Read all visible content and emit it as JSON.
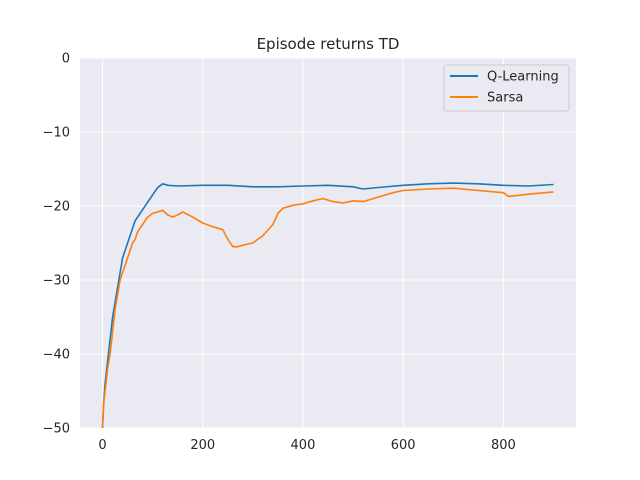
{
  "chart_data": {
    "type": "line",
    "title": "Episode returns TD",
    "xlabel": "",
    "ylabel": "",
    "xlim": [
      -45,
      945
    ],
    "ylim": [
      -50,
      0
    ],
    "xticks": [
      0,
      200,
      400,
      600,
      800
    ],
    "yticks": [
      0,
      -10,
      -20,
      -30,
      -40,
      -50
    ],
    "x_tick_labels": [
      "0",
      "200",
      "400",
      "600",
      "800"
    ],
    "y_tick_labels": [
      "0",
      "−10",
      "−20",
      "−30",
      "−40",
      "−50"
    ],
    "grid": true,
    "legend_position": "top-right",
    "series": [
      {
        "name": "Q-Learning",
        "color": "#1f77b4",
        "x": [
          0,
          2,
          5,
          10,
          15,
          20,
          25,
          30,
          35,
          40,
          45,
          50,
          55,
          60,
          65,
          70,
          75,
          80,
          90,
          100,
          110,
          120,
          130,
          150,
          200,
          250,
          300,
          350,
          400,
          450,
          500,
          520,
          550,
          600,
          650,
          700,
          750,
          800,
          850,
          900
        ],
        "y": [
          -50,
          -47,
          -44,
          -41,
          -38,
          -35,
          -33,
          -31,
          -29,
          -27,
          -26,
          -25,
          -24,
          -23,
          -22,
          -21.5,
          -21,
          -20.5,
          -19.5,
          -18.5,
          -17.5,
          -17.0,
          -17.2,
          -17.3,
          -17.2,
          -17.2,
          -17.4,
          -17.4,
          -17.3,
          -17.2,
          -17.4,
          -17.7,
          -17.5,
          -17.2,
          -17.0,
          -16.9,
          -17.0,
          -17.2,
          -17.3,
          -17.1
        ]
      },
      {
        "name": "Sarsa",
        "color": "#ff7f0e",
        "x": [
          0,
          2,
          5,
          10,
          15,
          20,
          25,
          30,
          35,
          40,
          45,
          50,
          55,
          60,
          65,
          70,
          80,
          90,
          100,
          110,
          120,
          130,
          140,
          150,
          160,
          180,
          200,
          220,
          240,
          250,
          260,
          270,
          280,
          300,
          320,
          340,
          350,
          360,
          380,
          400,
          420,
          440,
          460,
          480,
          500,
          520,
          540,
          560,
          580,
          600,
          650,
          700,
          750,
          800,
          810,
          850,
          900
        ],
        "y": [
          -50,
          -47,
          -45,
          -42,
          -40,
          -37,
          -34,
          -32,
          -30,
          -29,
          -28,
          -27,
          -26,
          -25,
          -24.5,
          -23.5,
          -22.5,
          -21.5,
          -21.0,
          -20.8,
          -20.6,
          -21.2,
          -21.5,
          -21.2,
          -20.8,
          -21.5,
          -22.3,
          -22.8,
          -23.2,
          -24.5,
          -25.5,
          -25.5,
          -25.3,
          -25.0,
          -24.0,
          -22.5,
          -21.0,
          -20.3,
          -19.9,
          -19.7,
          -19.3,
          -19.0,
          -19.4,
          -19.6,
          -19.3,
          -19.4,
          -19.0,
          -18.6,
          -18.2,
          -17.9,
          -17.7,
          -17.6,
          -17.9,
          -18.2,
          -18.7,
          -18.4,
          -18.1
        ]
      }
    ]
  }
}
